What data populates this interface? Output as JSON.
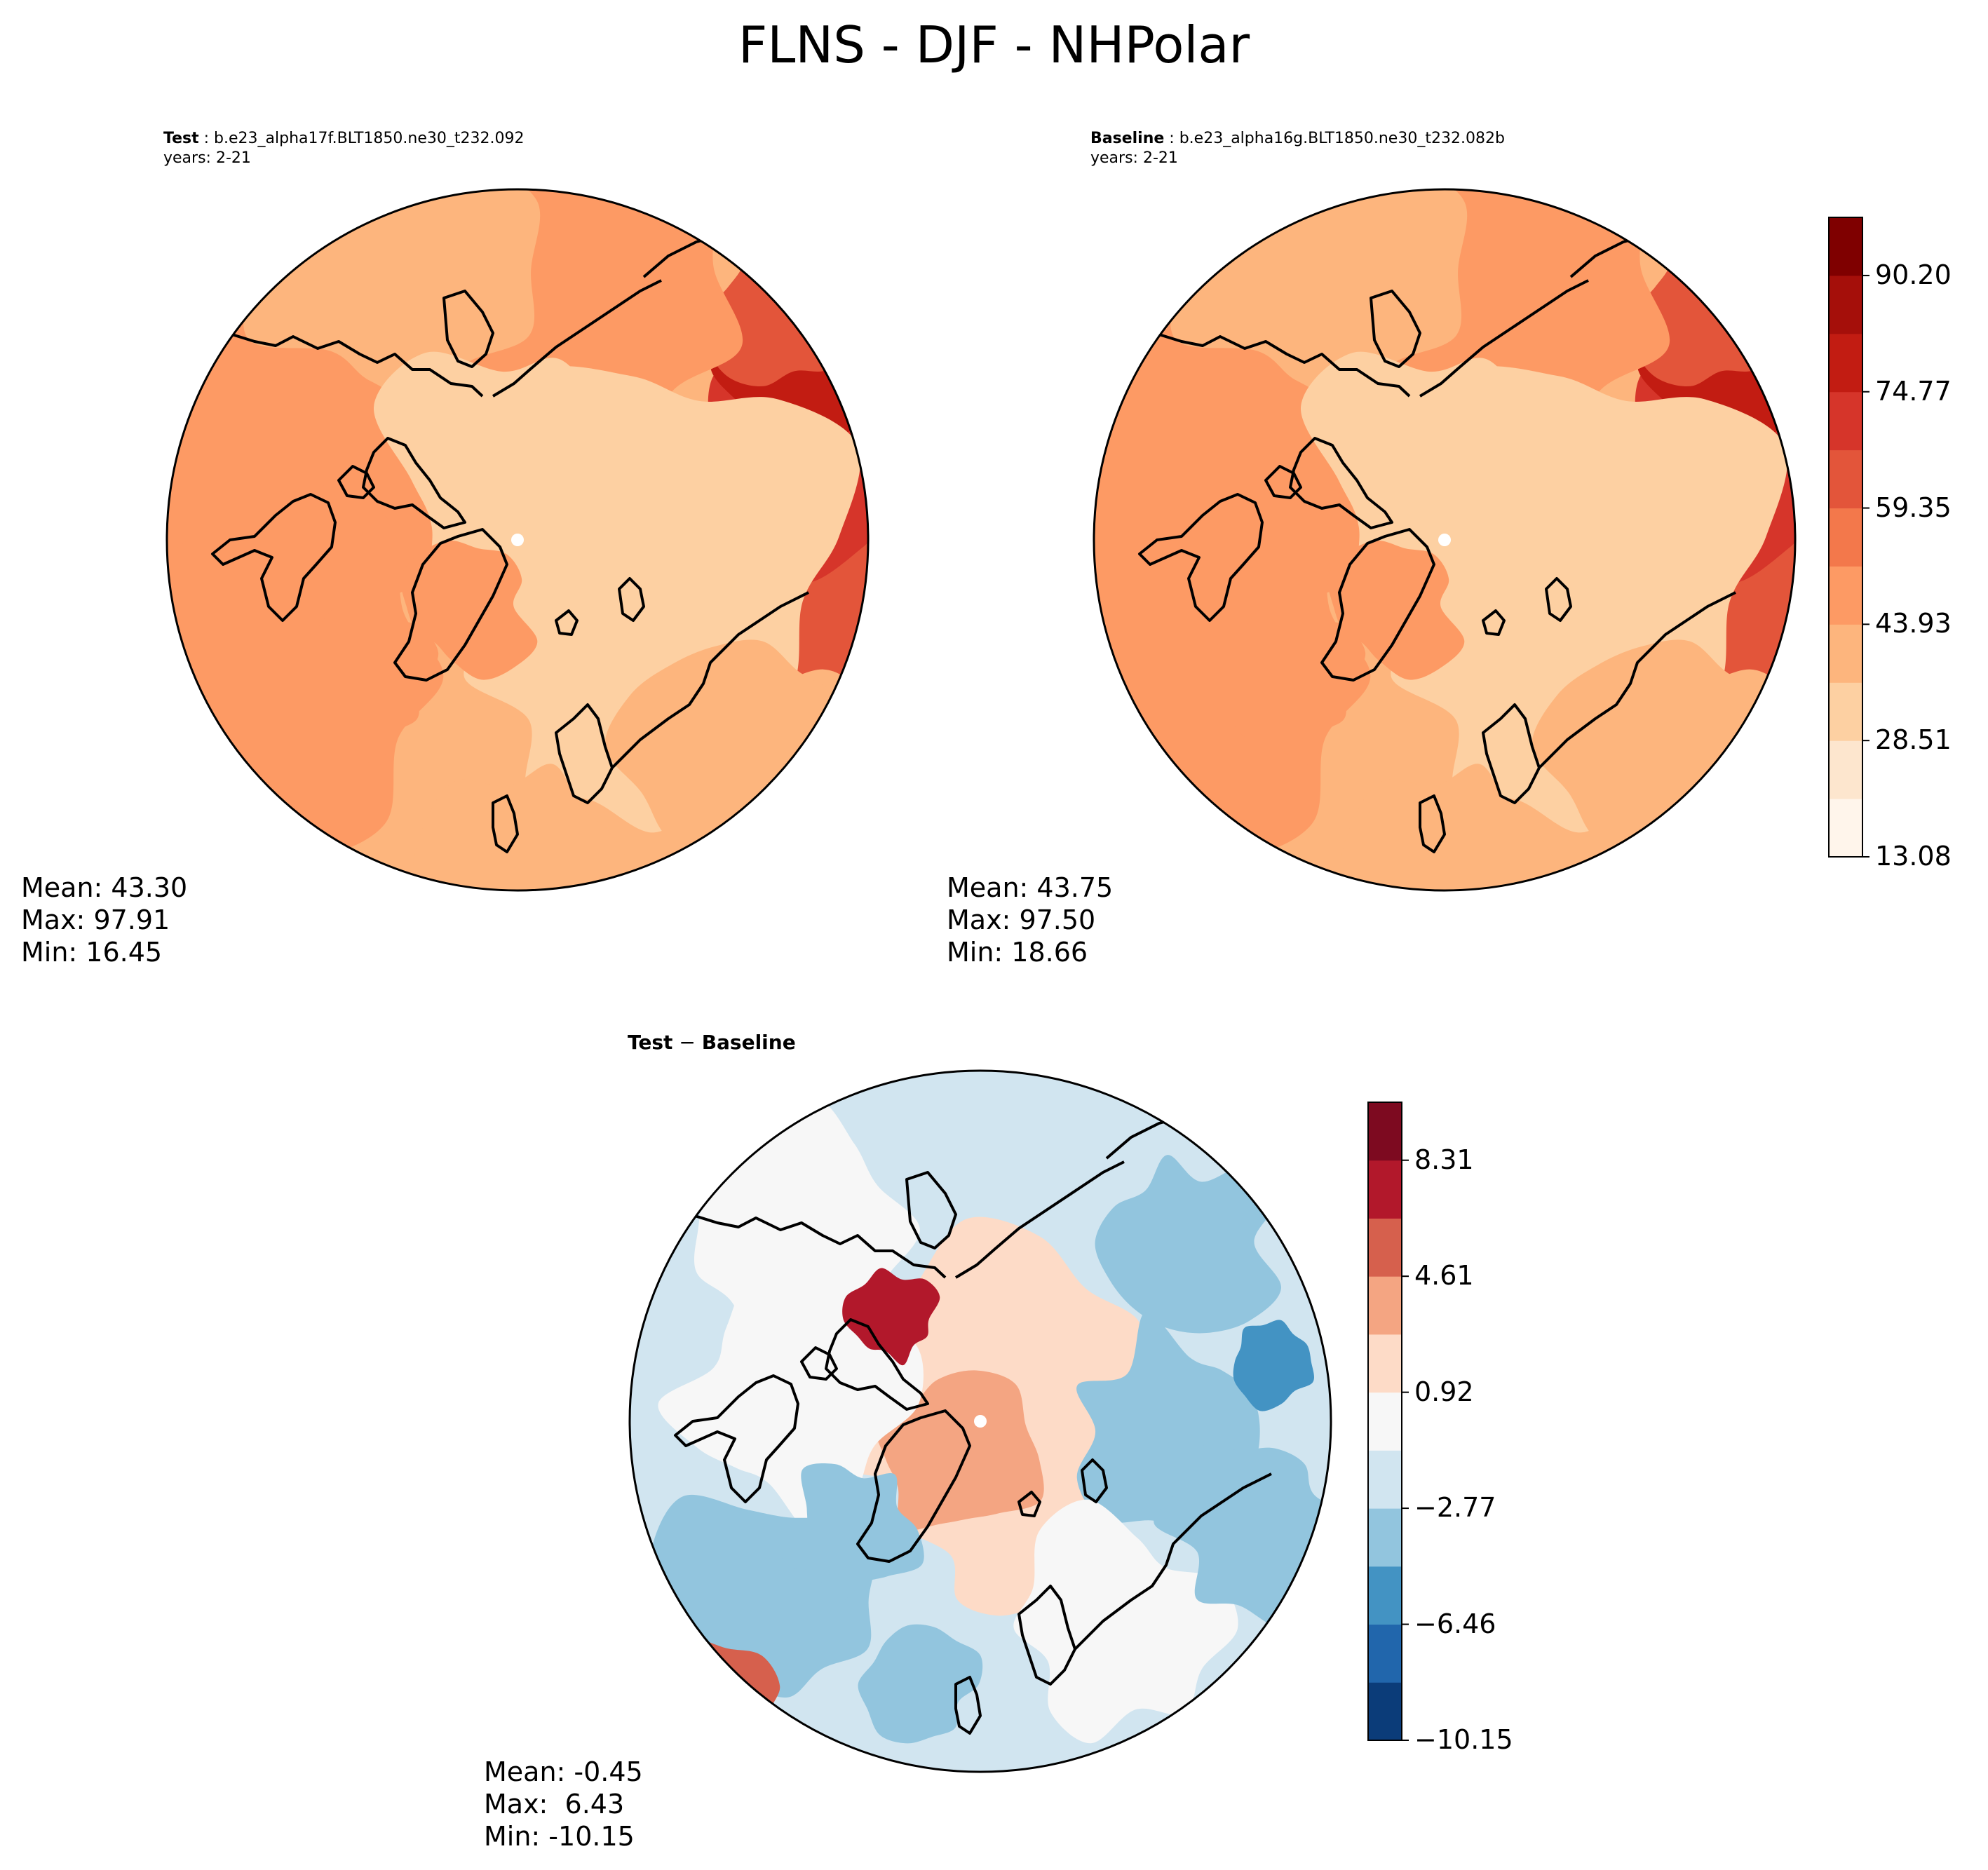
{
  "title": "FLNS - DJF - NHPolar",
  "panels": {
    "test": {
      "label": "Test",
      "case": "b.e23_alpha17f.BLT1850.ne30_t232.092",
      "years": "years: 2-21",
      "stats": [
        "Mean: 43.30",
        "Max: 97.91",
        "Min: 16.45"
      ]
    },
    "baseline": {
      "label": "Baseline",
      "case": "b.e23_alpha16g.BLT1850.ne30_t232.082b",
      "years": "years: 2-21",
      "stats": [
        "Mean: 43.75",
        "Max: 97.50",
        "Min: 18.66"
      ]
    },
    "diff": {
      "label": "Test",
      "minus": " − ",
      "label2": "Baseline",
      "stats": [
        "Mean: -0.45",
        "Max:  6.43",
        "Min: -10.15"
      ]
    }
  },
  "chart_data": [
    {
      "type": "heatmap",
      "panel": "test",
      "projection": "north polar stereographic",
      "colormap": "OrRd-like",
      "colorbar_ticks": [
        "13.08",
        "28.51",
        "43.93",
        "59.35",
        "74.77",
        "90.20"
      ],
      "levels": 11,
      "range": [
        13.08,
        97.91
      ]
    },
    {
      "type": "heatmap",
      "panel": "baseline",
      "projection": "north polar stereographic",
      "colormap": "OrRd-like",
      "colorbar_ticks": [
        "13.08",
        "28.51",
        "43.93",
        "59.35",
        "74.77",
        "90.20"
      ],
      "levels": 11
    },
    {
      "type": "heatmap",
      "panel": "diff",
      "projection": "north polar stereographic",
      "colormap": "RdBu_r",
      "colorbar_ticks": [
        "−10.15",
        "−6.46",
        "−2.77",
        "0.92",
        "4.61",
        "8.31"
      ],
      "levels": 11
    }
  ],
  "colors": {
    "seq": [
      "#fff5eb",
      "#fde6ce",
      "#fdd0a2",
      "#fdb57d",
      "#fd9a64",
      "#f3784b",
      "#e3553a",
      "#d6352a",
      "#c21c12",
      "#a50f0a",
      "#7f0000"
    ],
    "div": [
      "#0b3c79",
      "#2166ac",
      "#4393c3",
      "#92c5de",
      "#d1e5f0",
      "#f7f7f7",
      "#fddbc7",
      "#f4a582",
      "#d6604d",
      "#b2182b",
      "#7d0a20"
    ]
  }
}
